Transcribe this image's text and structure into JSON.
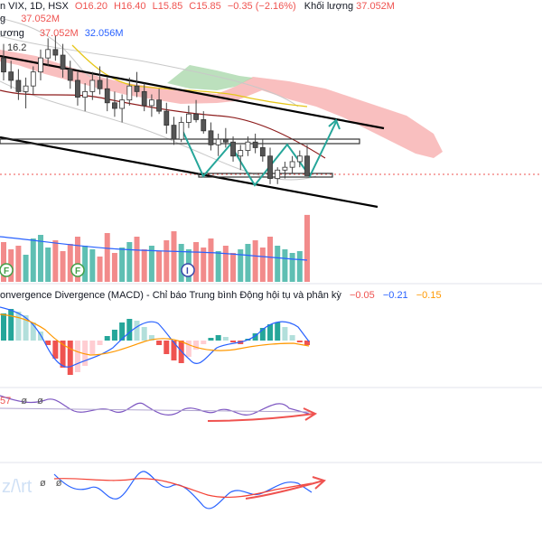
{
  "header": {
    "symbol": "n VIX, 1D, HSX",
    "o": "O16.20",
    "h": "H16.40",
    "l": "L15.85",
    "c": "C15.85",
    "change": "−0.35 (−2.16%)",
    "vol_label": "Khối lượng",
    "vol_value": "37.052M"
  },
  "sub_labels": {
    "line2_label": "g",
    "line2_value": "37.052M",
    "line3_label": "ương",
    "line3_value1": "37.052M",
    "line3_value2": "32.056M",
    "line4_value": "16.2"
  },
  "macd": {
    "title": "onvergence Divergence (MACD) - Chỉ báo Trung bình Động hội tụ và phân kỳ",
    "v1": "−0.05",
    "v2": "−0.21",
    "v3": "−0.15"
  },
  "rsi": {
    "label": "57",
    "z1": "ø",
    "z2": "ø"
  },
  "stoch": {
    "z1": "ø",
    "z2": "ø"
  },
  "colors": {
    "up": "#26a69a",
    "down": "#ef5350",
    "vol_up": "#5fbfb3",
    "vol_down": "#f28b8b",
    "cloud_red": "#f7a9a9",
    "cloud_green": "#a5d6a7",
    "macd_line": "#2962ff",
    "signal_line": "#ff9800",
    "rsi_line": "#7e57c2",
    "stoch_k": "#2962ff",
    "stoch_d": "#f44336",
    "arrow": "#ef5350",
    "green_arrow": "#26a69a"
  },
  "chart_data": {
    "type": "candlestick",
    "candles": [
      [
        17.95,
        18.2,
        17.55,
        17.7
      ],
      [
        17.7,
        17.9,
        17.4,
        17.55
      ],
      [
        17.55,
        17.75,
        17.2,
        17.35
      ],
      [
        17.35,
        17.6,
        17.05,
        17.45
      ],
      [
        17.45,
        17.8,
        17.3,
        17.7
      ],
      [
        17.7,
        18.1,
        17.55,
        17.95
      ],
      [
        17.95,
        18.3,
        17.8,
        18.1
      ],
      [
        18.1,
        18.35,
        17.9,
        18.0
      ],
      [
        18.0,
        18.2,
        17.6,
        17.75
      ],
      [
        17.75,
        17.9,
        17.4,
        17.55
      ],
      [
        17.55,
        17.7,
        17.1,
        17.25
      ],
      [
        17.25,
        17.5,
        17.0,
        17.35
      ],
      [
        17.35,
        17.7,
        17.2,
        17.55
      ],
      [
        17.55,
        17.8,
        17.3,
        17.4
      ],
      [
        17.4,
        17.6,
        17.0,
        17.15
      ],
      [
        17.15,
        17.35,
        16.9,
        17.05
      ],
      [
        17.05,
        17.3,
        16.8,
        17.2
      ],
      [
        17.2,
        17.6,
        17.1,
        17.45
      ],
      [
        17.45,
        17.7,
        17.25,
        17.35
      ],
      [
        17.35,
        17.5,
        17.0,
        17.1
      ],
      [
        17.1,
        17.3,
        16.9,
        17.2
      ],
      [
        17.2,
        17.4,
        16.95,
        17.0
      ],
      [
        17.0,
        17.15,
        16.6,
        16.75
      ],
      [
        16.75,
        16.9,
        16.4,
        16.5
      ],
      [
        16.5,
        16.9,
        16.45,
        16.8
      ],
      [
        16.8,
        17.1,
        16.7,
        16.95
      ],
      [
        16.95,
        17.2,
        16.8,
        16.85
      ],
      [
        16.85,
        17.0,
        16.6,
        16.65
      ],
      [
        16.65,
        16.8,
        16.3,
        16.4
      ],
      [
        16.4,
        16.6,
        16.2,
        16.5
      ],
      [
        16.5,
        16.7,
        16.35,
        16.45
      ],
      [
        16.45,
        16.55,
        16.1,
        16.2
      ],
      [
        16.2,
        16.4,
        15.95,
        16.3
      ],
      [
        16.3,
        16.55,
        16.2,
        16.45
      ],
      [
        16.45,
        16.6,
        16.25,
        16.35
      ],
      [
        16.35,
        16.5,
        16.1,
        16.2
      ],
      [
        16.2,
        16.35,
        15.7,
        15.8
      ],
      [
        15.8,
        16.0,
        15.7,
        15.95
      ],
      [
        15.95,
        16.1,
        15.8,
        16.0
      ],
      [
        16.0,
        16.2,
        15.9,
        16.1
      ],
      [
        16.1,
        16.3,
        16.0,
        16.2
      ],
      [
        16.2,
        16.4,
        15.85,
        15.85
      ]
    ],
    "volume": [
      22,
      18,
      20,
      15,
      24,
      26,
      19,
      23,
      17,
      21,
      25,
      20,
      18,
      14,
      27,
      16,
      19,
      22,
      25,
      18,
      20,
      17,
      23,
      28,
      21,
      18,
      22,
      19,
      24,
      17,
      20,
      16,
      18,
      21,
      23,
      19,
      25,
      20,
      18,
      16,
      17,
      37.052
    ],
    "volume_ma": 32.056,
    "macd_hist": [
      0.3,
      0.35,
      0.32,
      0.28,
      0.2,
      0.1,
      -0.05,
      -0.2,
      -0.3,
      -0.38,
      -0.35,
      -0.28,
      -0.15,
      -0.05,
      0.05,
      0.12,
      0.2,
      0.24,
      0.22,
      0.15,
      0.06,
      -0.05,
      -0.15,
      -0.22,
      -0.25,
      -0.18,
      -0.1,
      -0.04,
      0.03,
      0.06,
      0.04,
      -0.02,
      -0.04,
      0.02,
      0.08,
      0.14,
      0.18,
      0.2,
      0.15,
      0.06,
      -0.02,
      -0.05
    ],
    "macd_line": -0.21,
    "macd_signal": -0.15,
    "macd_hist_last": -0.05
  }
}
